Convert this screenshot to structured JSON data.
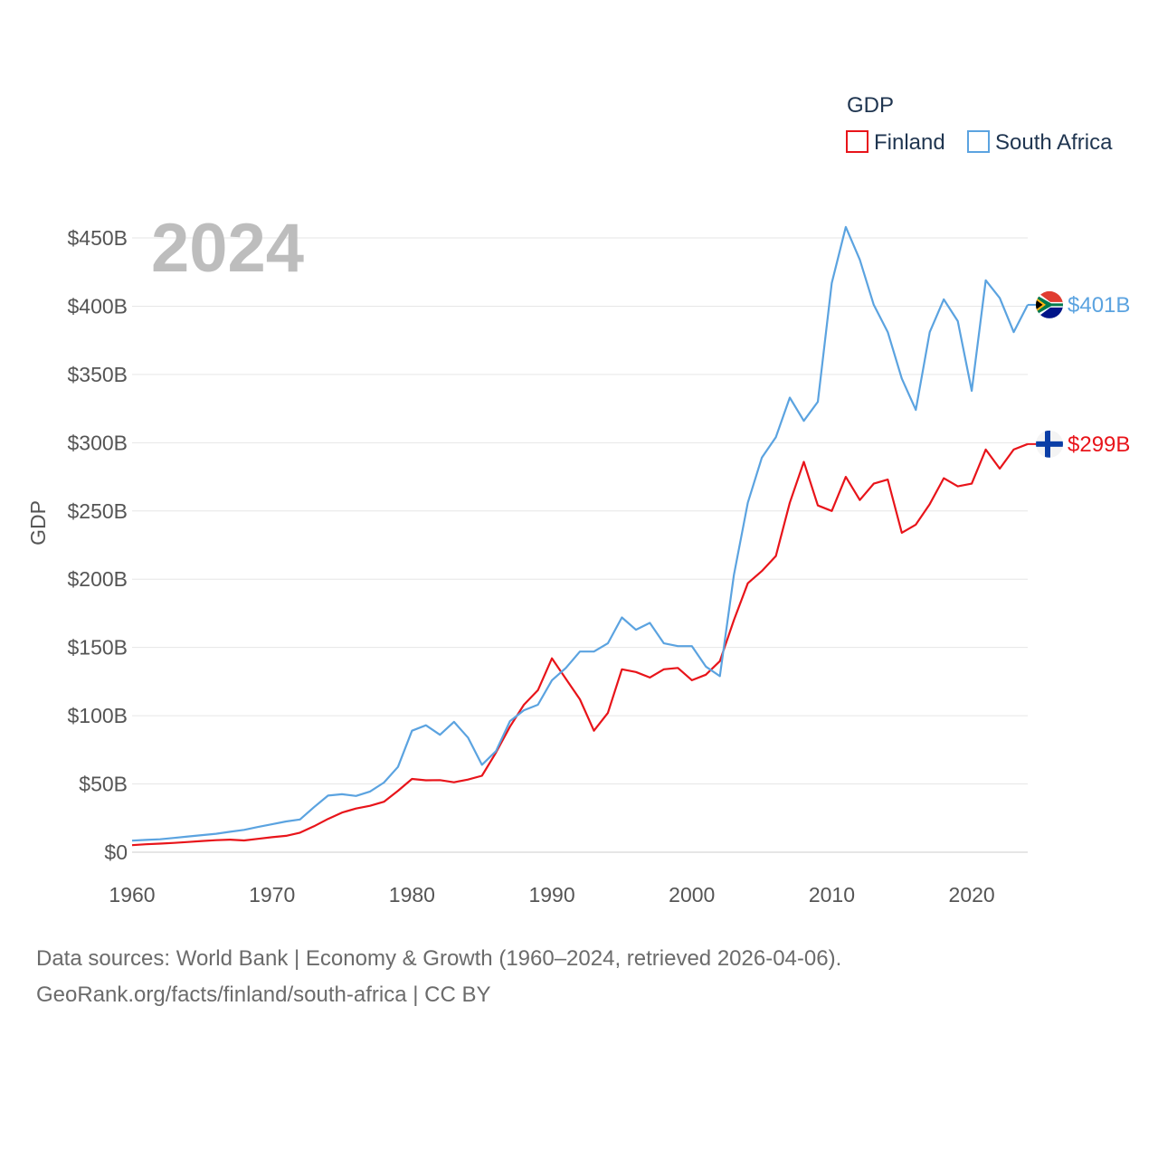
{
  "chart_data": {
    "type": "line",
    "ylabel": "GDP",
    "year_label": "2024",
    "legend_title": "GDP",
    "ylim": [
      0,
      450
    ],
    "y_ticks": [
      0,
      50,
      100,
      150,
      200,
      250,
      300,
      350,
      400,
      450
    ],
    "y_tick_labels": [
      "$0",
      "$50B",
      "$100B",
      "$150B",
      "$200B",
      "$250B",
      "$300B",
      "$350B",
      "$400B",
      "$450B"
    ],
    "x_ticks": [
      1960,
      1970,
      1980,
      1990,
      2000,
      2010,
      2020
    ],
    "x_tick_labels": [
      "1960",
      "1970",
      "1980",
      "1990",
      "2000",
      "2010",
      "2020"
    ],
    "xlim": [
      1960,
      2024
    ],
    "x": [
      1960,
      1961,
      1962,
      1963,
      1964,
      1965,
      1966,
      1967,
      1968,
      1969,
      1970,
      1971,
      1972,
      1973,
      1974,
      1975,
      1976,
      1977,
      1978,
      1979,
      1980,
      1981,
      1982,
      1983,
      1984,
      1985,
      1986,
      1987,
      1988,
      1989,
      1990,
      1991,
      1992,
      1993,
      1994,
      1995,
      1996,
      1997,
      1998,
      1999,
      2000,
      2001,
      2002,
      2003,
      2004,
      2005,
      2006,
      2007,
      2008,
      2009,
      2010,
      2011,
      2012,
      2013,
      2014,
      2015,
      2016,
      2017,
      2018,
      2019,
      2020,
      2021,
      2022,
      2023,
      2024
    ],
    "series": [
      {
        "name": "Finland",
        "color": "#e8141a",
        "end_label": "$299B",
        "flag": "finland-flag",
        "values": [
          5.2,
          5.8,
          6.3,
          6.8,
          7.5,
          8.2,
          8.8,
          9.2,
          8.6,
          9.8,
          11,
          12,
          14.3,
          19,
          24.4,
          29,
          32,
          34,
          37,
          45,
          53.7,
          52.7,
          52.8,
          51.2,
          53.2,
          56,
          73,
          92,
          108,
          118.7,
          142,
          127,
          112,
          89,
          102,
          134,
          132,
          128,
          134,
          135,
          126,
          130,
          140,
          170,
          197,
          206,
          217,
          256,
          286,
          254,
          250,
          275,
          258,
          270,
          273,
          234,
          240,
          255,
          274,
          268,
          270,
          295,
          281,
          295,
          299
        ]
      },
      {
        "name": "South Africa",
        "color": "#5ba3e0",
        "end_label": "$401B",
        "flag": "south-africa-flag",
        "values": [
          8.5,
          9,
          9.5,
          10.5,
          11.5,
          12.5,
          13.5,
          15,
          16.4,
          18.5,
          20.5,
          22.5,
          24,
          33,
          41.5,
          42.5,
          41.2,
          44.5,
          51,
          62.5,
          89,
          93,
          86,
          95.5,
          84,
          64,
          74,
          96,
          104,
          108,
          126,
          135,
          147,
          147,
          153,
          172,
          163,
          168,
          153,
          151,
          151,
          136,
          129,
          203,
          256,
          289,
          304,
          333,
          316,
          330,
          417,
          458,
          434,
          401,
          381,
          347,
          324,
          381,
          405,
          389,
          338,
          419,
          406,
          381,
          401
        ]
      }
    ]
  },
  "source": {
    "line1": "Data sources: World Bank | Economy & Growth (1960–2024, retrieved 2026-04-06).",
    "line2": "GeoRank.org/facts/finland/south-africa | CC BY"
  }
}
